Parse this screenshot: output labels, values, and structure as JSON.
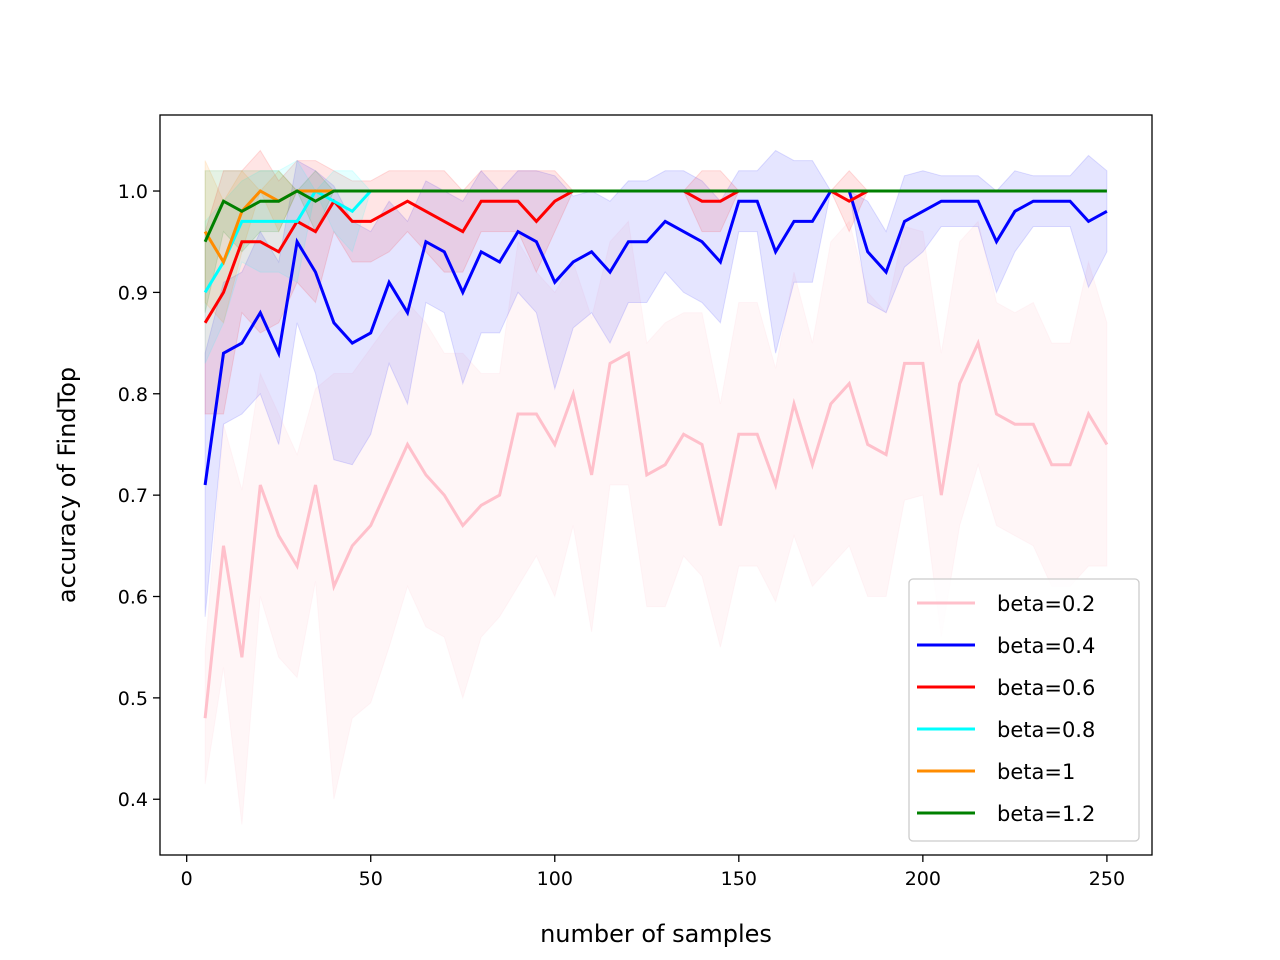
{
  "chart_data": {
    "type": "line",
    "xlabel": "number of samples",
    "ylabel": "accuracy of FindTop",
    "xlim": [
      -7.25,
      262.25
    ],
    "ylim": [
      0.345,
      1.075
    ],
    "xticks": [
      0,
      50,
      100,
      150,
      200,
      250
    ],
    "yticks": [
      0.4,
      0.5,
      0.6,
      0.7,
      0.8,
      0.9,
      1.0
    ],
    "grid": false,
    "legend_position": "lower-right",
    "series": [
      {
        "name": "beta=0.2",
        "color": "#ffc0cb",
        "x": [
          5,
          10,
          15,
          20,
          25,
          30,
          35,
          40,
          45,
          50,
          55,
          60,
          65,
          70,
          75,
          80,
          85,
          90,
          95,
          100,
          105,
          110,
          115,
          120,
          125,
          130,
          135,
          140,
          145,
          150,
          155,
          160,
          165,
          170,
          175,
          180,
          185,
          190,
          195,
          200,
          205,
          210,
          215,
          220,
          225,
          230,
          235,
          240,
          245,
          250
        ],
        "y": [
          0.48,
          0.65,
          0.54,
          0.71,
          0.66,
          0.63,
          0.71,
          0.61,
          0.65,
          0.67,
          0.71,
          0.75,
          0.72,
          0.7,
          0.67,
          0.69,
          0.7,
          0.78,
          0.78,
          0.75,
          0.8,
          0.72,
          0.83,
          0.84,
          0.72,
          0.73,
          0.76,
          0.75,
          0.67,
          0.76,
          0.76,
          0.71,
          0.79,
          0.73,
          0.79,
          0.81,
          0.75,
          0.74,
          0.83,
          0.83,
          0.7,
          0.81,
          0.85,
          0.78,
          0.77,
          0.77,
          0.73,
          0.73,
          0.78,
          0.75
        ],
        "std": [
          0.065,
          0.12,
          0.165,
          0.11,
          0.12,
          0.11,
          0.095,
          0.21,
          0.17,
          0.175,
          0.16,
          0.14,
          0.15,
          0.14,
          0.17,
          0.13,
          0.12,
          0.17,
          0.14,
          0.15,
          0.13,
          0.155,
          0.12,
          0.13,
          0.13,
          0.14,
          0.12,
          0.13,
          0.12,
          0.13,
          0.13,
          0.115,
          0.13,
          0.12,
          0.16,
          0.16,
          0.15,
          0.14,
          0.135,
          0.13,
          0.14,
          0.14,
          0.12,
          0.11,
          0.11,
          0.12,
          0.12,
          0.12,
          0.15,
          0.12
        ]
      },
      {
        "name": "beta=0.4",
        "color": "#0000ff",
        "x": [
          5,
          10,
          15,
          20,
          25,
          30,
          35,
          40,
          45,
          50,
          55,
          60,
          65,
          70,
          75,
          80,
          85,
          90,
          95,
          100,
          105,
          110,
          115,
          120,
          125,
          130,
          135,
          140,
          145,
          150,
          155,
          160,
          165,
          170,
          175,
          180,
          185,
          190,
          195,
          200,
          205,
          210,
          215,
          220,
          225,
          230,
          235,
          240,
          245,
          250
        ],
        "y": [
          0.71,
          0.84,
          0.85,
          0.88,
          0.84,
          0.95,
          0.92,
          0.87,
          0.85,
          0.86,
          0.91,
          0.88,
          0.95,
          0.94,
          0.9,
          0.94,
          0.93,
          0.96,
          0.95,
          0.91,
          0.93,
          0.94,
          0.92,
          0.95,
          0.95,
          0.97,
          0.96,
          0.95,
          0.93,
          0.99,
          0.99,
          0.94,
          0.97,
          0.97,
          1.0,
          1.0,
          0.94,
          0.92,
          0.97,
          0.98,
          0.99,
          0.99,
          0.99,
          0.95,
          0.98,
          0.99,
          0.99,
          0.99,
          0.97,
          0.98
        ],
        "std": [
          0.13,
          0.07,
          0.07,
          0.08,
          0.09,
          0.08,
          0.1,
          0.135,
          0.12,
          0.1,
          0.08,
          0.09,
          0.06,
          0.06,
          0.09,
          0.08,
          0.07,
          0.06,
          0.07,
          0.105,
          0.065,
          0.06,
          0.07,
          0.06,
          0.06,
          0.05,
          0.06,
          0.06,
          0.06,
          0.03,
          0.03,
          0.1,
          0.06,
          0.06,
          0.0,
          0.0,
          0.05,
          0.04,
          0.045,
          0.04,
          0.025,
          0.025,
          0.025,
          0.05,
          0.04,
          0.025,
          0.025,
          0.025,
          0.065,
          0.04
        ]
      },
      {
        "name": "beta=0.6",
        "color": "#ff0000",
        "x": [
          5,
          10,
          15,
          20,
          25,
          30,
          35,
          40,
          45,
          50,
          55,
          60,
          65,
          70,
          75,
          80,
          85,
          90,
          95,
          100,
          105,
          110,
          115,
          120,
          125,
          130,
          135,
          140,
          145,
          150,
          155,
          160,
          165,
          170,
          175,
          180,
          185
        ],
        "y": [
          0.87,
          0.9,
          0.95,
          0.95,
          0.94,
          0.97,
          0.96,
          0.99,
          0.97,
          0.97,
          0.98,
          0.99,
          0.98,
          0.97,
          0.96,
          0.99,
          0.99,
          0.99,
          0.97,
          0.99,
          1.0,
          1.0,
          1.0,
          1.0,
          1.0,
          1.0,
          1.0,
          0.99,
          0.99,
          1.0,
          1.0,
          1.0,
          1.0,
          1.0,
          1.0,
          0.99,
          1.0
        ],
        "std": [
          0.09,
          0.12,
          0.07,
          0.09,
          0.07,
          0.06,
          0.07,
          0.03,
          0.04,
          0.04,
          0.04,
          0.03,
          0.04,
          0.05,
          0.04,
          0.03,
          0.03,
          0.03,
          0.05,
          0.03,
          0.0,
          0.0,
          0.0,
          0.0,
          0.0,
          0.0,
          0.0,
          0.03,
          0.03,
          0.0,
          0.0,
          0.0,
          0.0,
          0.0,
          0.0,
          0.03,
          0.0
        ]
      },
      {
        "name": "beta=0.8",
        "color": "#00ffff",
        "x": [
          5,
          10,
          15,
          20,
          25,
          30,
          35,
          40,
          45,
          50
        ],
        "y": [
          0.9,
          0.93,
          0.97,
          0.97,
          0.97,
          0.97,
          1.0,
          0.99,
          0.98,
          1.0
        ],
        "std": [
          0.07,
          0.06,
          0.04,
          0.05,
          0.05,
          0.06,
          0.0,
          0.03,
          0.04,
          0.0
        ]
      },
      {
        "name": "beta=1",
        "color": "#ff8c00",
        "x": [
          5,
          10,
          15,
          20,
          25,
          30,
          35,
          40
        ],
        "y": [
          0.96,
          0.93,
          0.98,
          1.0,
          0.99,
          1.0,
          1.0,
          1.0
        ],
        "std": [
          0.07,
          0.06,
          0.04,
          0.0,
          0.03,
          0.0,
          0.0,
          0.0
        ]
      },
      {
        "name": "beta=1.2",
        "color": "#008000",
        "x": [
          5,
          10,
          15,
          20,
          25,
          30,
          35,
          40,
          45,
          50,
          55,
          60,
          65,
          70,
          75,
          80,
          85,
          90,
          95,
          100,
          105,
          110,
          115,
          120,
          125,
          130,
          135,
          140,
          145,
          150,
          155,
          160,
          165,
          170,
          175,
          180,
          185,
          190,
          195,
          200,
          205,
          210,
          215,
          220,
          225,
          230,
          235,
          240,
          245,
          250
        ],
        "y": [
          0.95,
          0.99,
          0.98,
          0.99,
          0.99,
          1.0,
          0.99,
          1.0,
          1.0,
          1.0,
          1.0,
          1.0,
          1.0,
          1.0,
          1.0,
          1.0,
          1.0,
          1.0,
          1.0,
          1.0,
          1.0,
          1.0,
          1.0,
          1.0,
          1.0,
          1.0,
          1.0,
          1.0,
          1.0,
          1.0,
          1.0,
          1.0,
          1.0,
          1.0,
          1.0,
          1.0,
          1.0,
          1.0,
          1.0,
          1.0,
          1.0,
          1.0,
          1.0,
          1.0,
          1.0,
          1.0,
          1.0,
          1.0,
          1.0,
          1.0
        ],
        "std": [
          0.07,
          0.03,
          0.04,
          0.03,
          0.03,
          0.0,
          0.03,
          0.0,
          0.0,
          0.0,
          0.0,
          0.0,
          0.0,
          0.0,
          0.0,
          0.0,
          0.0,
          0.0,
          0.0,
          0.0,
          0.0,
          0.0,
          0.0,
          0.0,
          0.0,
          0.0,
          0.0,
          0.0,
          0.0,
          0.0,
          0.0,
          0.0,
          0.0,
          0.0,
          0.0,
          0.0,
          0.0,
          0.0,
          0.0,
          0.0,
          0.0,
          0.0,
          0.0,
          0.0,
          0.0,
          0.0,
          0.0,
          0.0,
          0.0,
          0.0
        ]
      }
    ]
  }
}
